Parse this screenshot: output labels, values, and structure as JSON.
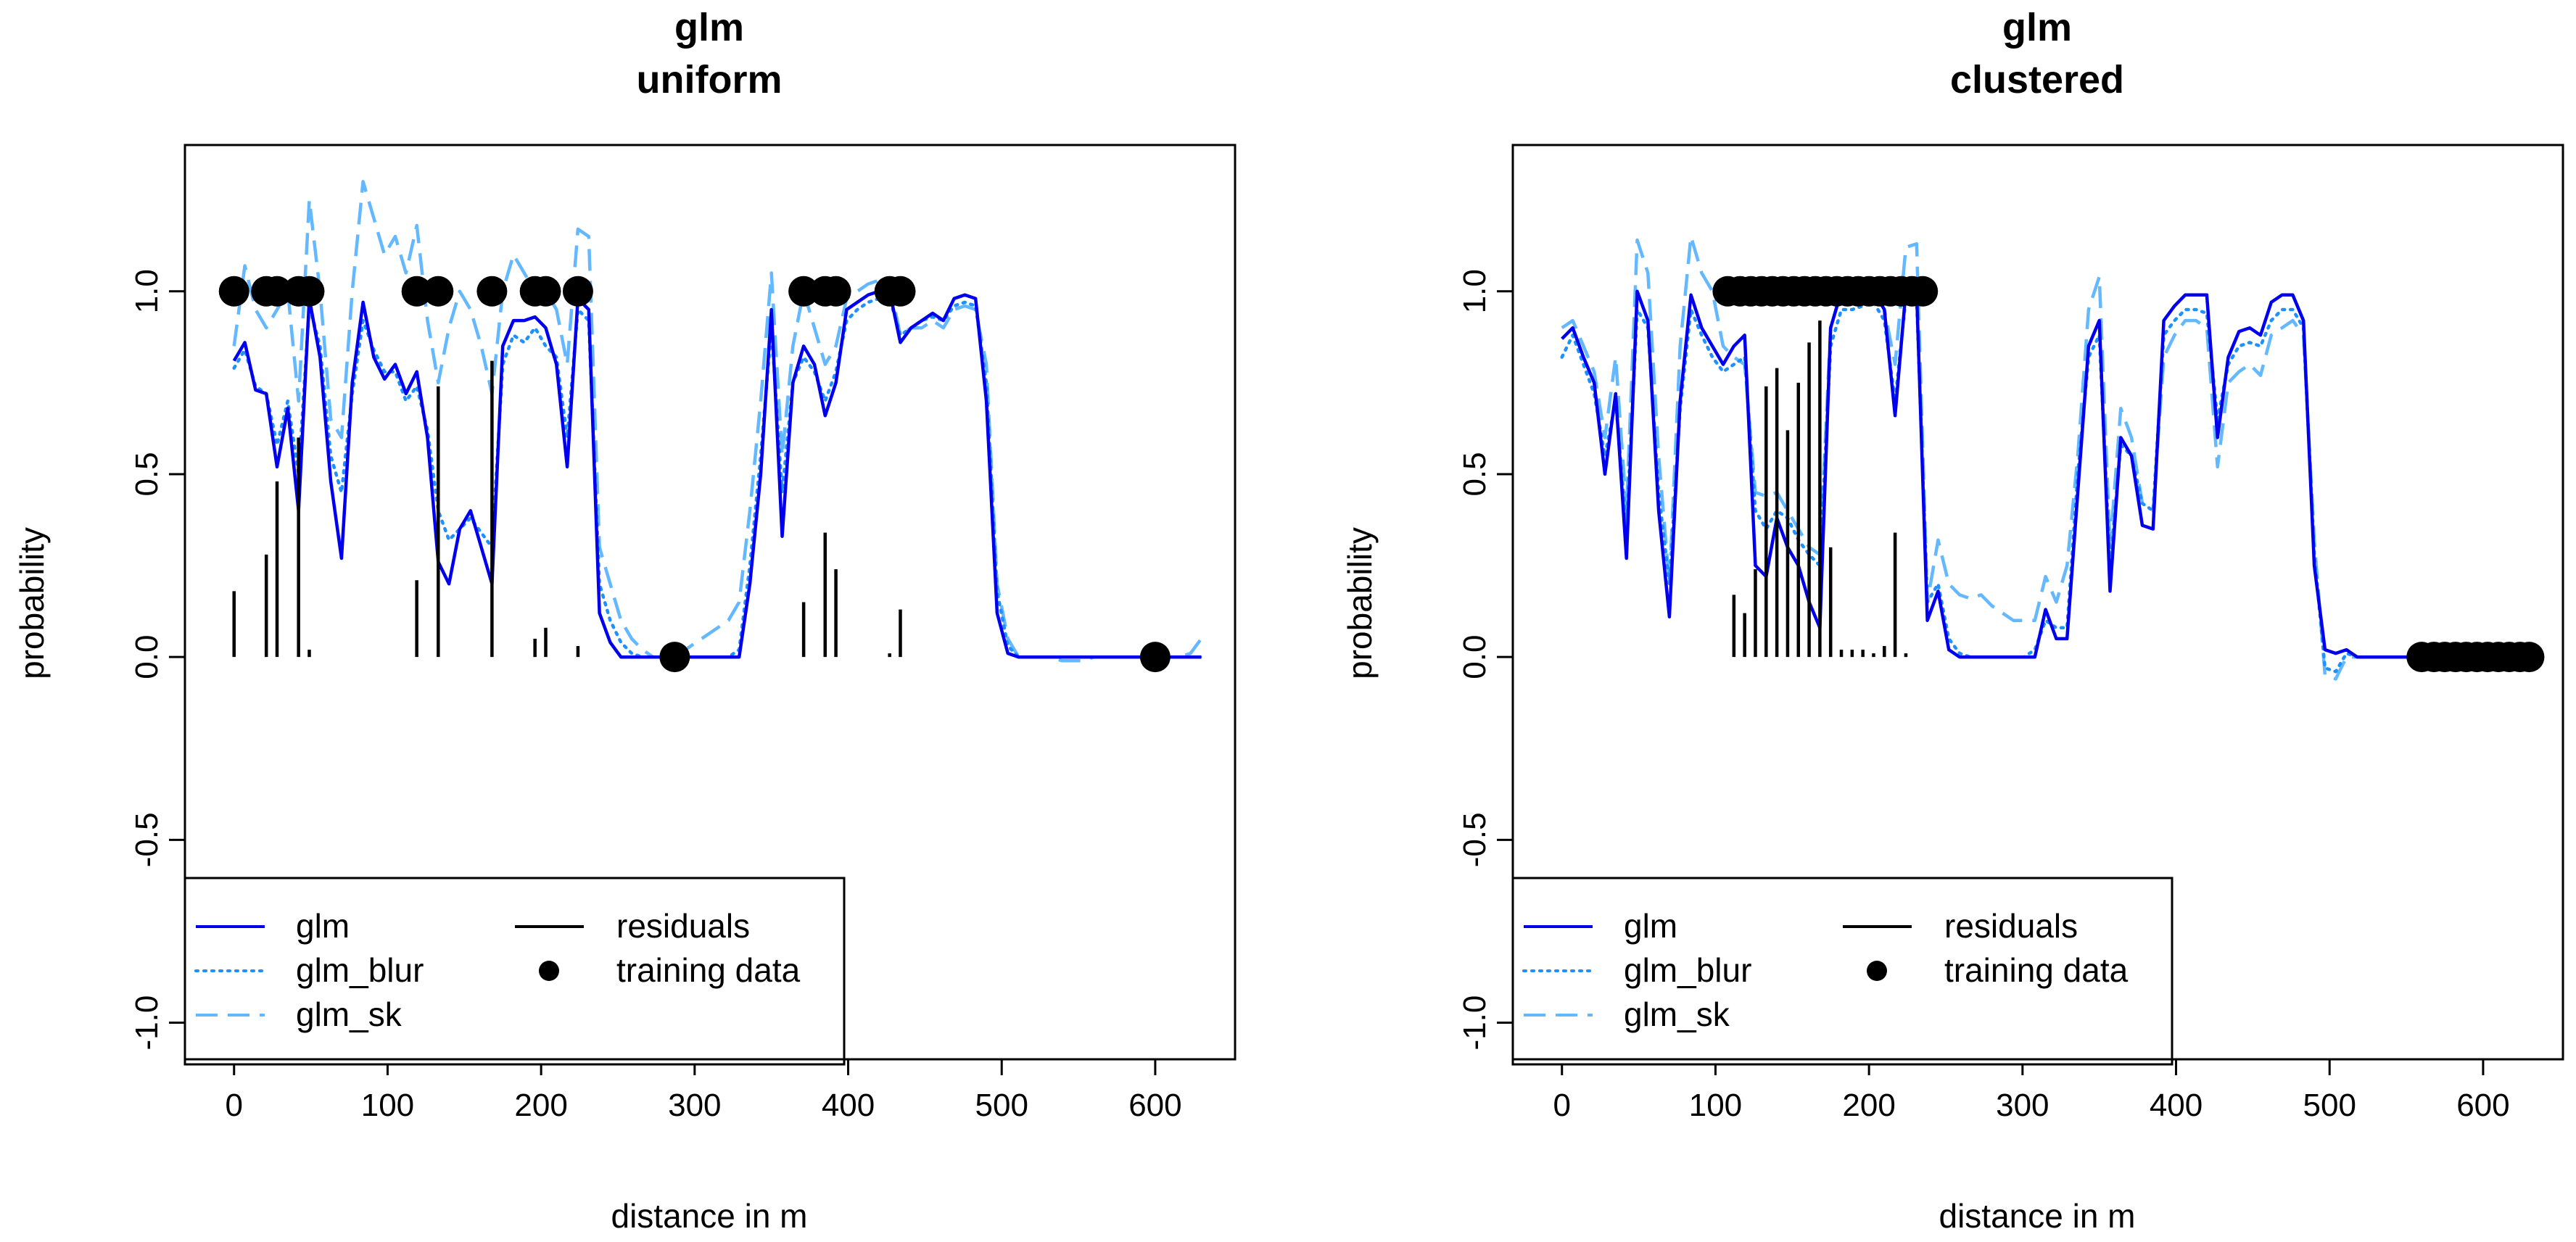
{
  "figure": {
    "ylabel": "probability",
    "xlabel": "distance in m",
    "legend": {
      "position": "bottom-left",
      "entries": [
        {
          "label": "glm",
          "style": "solid",
          "color": "#0000EE"
        },
        {
          "label": "glm_blur",
          "style": "dotted",
          "color": "#1E90FF"
        },
        {
          "label": "glm_sk",
          "style": "dashed",
          "color": "#63B8FF"
        },
        {
          "label": "residuals",
          "style": "solid",
          "color": "#000000"
        },
        {
          "label": "training data",
          "style": "point",
          "color": "#000000"
        }
      ]
    },
    "colors": {
      "glm": "#0000EE",
      "glm_blur": "#1E90FF",
      "glm_sk": "#63B8FF",
      "residuals": "#000000",
      "training": "#000000"
    }
  },
  "chart_data": [
    {
      "type": "line",
      "title_line1": "glm",
      "title_line2": "uniform",
      "xlabel": "distance in m",
      "ylabel": "probability",
      "xlim": [
        -32,
        652
      ],
      "ylim": [
        -1.1,
        1.4
      ],
      "xticks": [
        0,
        100,
        200,
        300,
        400,
        500,
        600
      ],
      "yticks": [
        -1.0,
        -0.5,
        0.0,
        0.5,
        1.0
      ],
      "ytick_labels": [
        "-1.0",
        "-0.5",
        "0.0",
        "0.5",
        "1.0"
      ],
      "x": [
        0,
        7,
        14,
        21,
        28,
        35,
        42,
        49,
        56,
        63,
        70,
        77,
        84,
        91,
        98,
        105,
        112,
        119,
        126,
        133,
        140,
        147,
        154,
        161,
        168,
        175,
        182,
        189,
        196,
        203,
        210,
        217,
        224,
        231,
        238,
        245,
        252,
        259,
        266,
        273,
        280,
        287,
        294,
        301,
        308,
        315,
        322,
        329,
        336,
        343,
        350,
        357,
        364,
        371,
        378,
        385,
        392,
        399,
        406,
        413,
        420,
        427,
        434,
        441,
        448,
        455,
        462,
        469,
        476,
        483,
        490,
        497,
        504,
        511,
        518,
        525,
        532,
        539,
        546,
        553,
        560,
        567,
        574,
        581,
        588,
        595,
        602,
        609,
        616,
        623,
        630
      ],
      "series": [
        {
          "name": "glm",
          "values": [
            0.81,
            0.86,
            0.73,
            0.72,
            0.52,
            0.68,
            0.4,
            0.98,
            0.82,
            0.48,
            0.27,
            0.75,
            0.97,
            0.82,
            0.76,
            0.8,
            0.72,
            0.78,
            0.6,
            0.26,
            0.2,
            0.35,
            0.4,
            0.3,
            0.2,
            0.85,
            0.92,
            0.92,
            0.93,
            0.9,
            0.8,
            0.52,
            0.98,
            0.95,
            0.12,
            0.04,
            0.0,
            0.0,
            0.0,
            0.0,
            0.0,
            0.0,
            0.0,
            0.0,
            0.0,
            0.0,
            0.0,
            0.0,
            0.2,
            0.5,
            0.95,
            0.33,
            0.75,
            0.85,
            0.8,
            0.66,
            0.75,
            0.95,
            0.97,
            0.99,
            1.0,
            1.0,
            0.86,
            0.9,
            0.92,
            0.94,
            0.92,
            0.98,
            0.99,
            0.98,
            0.7,
            0.12,
            0.01,
            0.0,
            0.0,
            0.0,
            0.0,
            0.0,
            0.0,
            0.0,
            0.0,
            0.0,
            0.0,
            0.0,
            0.0,
            0.0,
            0.0,
            0.0,
            0.0,
            0.0,
            0.0
          ]
        },
        {
          "name": "glm_blur",
          "values": [
            0.79,
            0.84,
            0.74,
            0.72,
            0.58,
            0.7,
            0.5,
            0.96,
            0.85,
            0.55,
            0.45,
            0.72,
            0.92,
            0.84,
            0.78,
            0.78,
            0.7,
            0.74,
            0.62,
            0.4,
            0.32,
            0.35,
            0.38,
            0.34,
            0.3,
            0.8,
            0.88,
            0.86,
            0.9,
            0.85,
            0.82,
            0.6,
            0.95,
            0.92,
            0.2,
            0.1,
            0.04,
            0.01,
            0.0,
            0.0,
            0.0,
            0.0,
            0.0,
            0.0,
            0.0,
            0.0,
            0.0,
            0.02,
            0.25,
            0.55,
            0.9,
            0.45,
            0.75,
            0.82,
            0.78,
            0.7,
            0.78,
            0.92,
            0.95,
            0.97,
            0.98,
            0.98,
            0.88,
            0.9,
            0.92,
            0.93,
            0.92,
            0.96,
            0.97,
            0.96,
            0.75,
            0.18,
            0.03,
            0.0,
            0.0,
            0.0,
            0.0,
            0.0,
            0.0,
            0.0,
            0.0,
            0.0,
            0.0,
            0.0,
            0.0,
            0.0,
            0.0,
            0.0,
            0.0,
            0.0,
            0.0
          ]
        },
        {
          "name": "glm_sk",
          "values": [
            0.85,
            1.07,
            0.95,
            0.9,
            0.95,
            1.0,
            0.7,
            1.25,
            1.0,
            0.65,
            0.6,
            1.0,
            1.3,
            1.2,
            1.1,
            1.15,
            1.05,
            1.18,
            0.92,
            0.75,
            0.9,
            1.0,
            0.95,
            0.85,
            0.72,
            1.0,
            1.1,
            1.05,
            1.0,
            1.0,
            0.95,
            0.8,
            1.17,
            1.15,
            0.3,
            0.2,
            0.1,
            0.05,
            0.02,
            0.0,
            0.0,
            0.0,
            0.02,
            0.04,
            0.06,
            0.08,
            0.1,
            0.15,
            0.4,
            0.7,
            1.05,
            0.55,
            0.85,
            1.0,
            0.9,
            0.8,
            0.85,
            0.98,
            1.0,
            1.02,
            1.03,
            1.02,
            0.88,
            0.9,
            0.9,
            0.92,
            0.9,
            0.95,
            0.96,
            0.95,
            0.8,
            0.2,
            0.05,
            0.0,
            0.0,
            0.0,
            0.0,
            -0.01,
            -0.01,
            -0.01,
            0.0,
            0.0,
            0.0,
            0.0,
            0.0,
            0.0,
            0.0,
            0.0,
            0.0,
            0.01,
            0.05
          ]
        }
      ],
      "residuals": {
        "x": [
          0,
          21,
          28,
          42,
          49,
          119,
          133,
          168,
          196,
          203,
          224,
          371,
          385,
          392,
          427,
          434
        ],
        "values": [
          0.18,
          0.28,
          0.48,
          0.6,
          0.02,
          0.21,
          0.74,
          0.81,
          0.05,
          0.08,
          0.03,
          0.15,
          0.34,
          0.24,
          0.01,
          0.13
        ]
      },
      "training_data": {
        "x": [
          0,
          21,
          28,
          42,
          49,
          119,
          133,
          168,
          196,
          203,
          224,
          371,
          385,
          392,
          427,
          434,
          287,
          600
        ],
        "values": [
          1,
          1,
          1,
          1,
          1,
          1,
          1,
          1,
          1,
          1,
          1,
          1,
          1,
          1,
          1,
          1,
          0,
          0
        ]
      }
    },
    {
      "type": "line",
      "title_line1": "glm",
      "title_line2": "clustered",
      "xlabel": "distance in m",
      "ylabel": "probability",
      "xlim": [
        -32,
        652
      ],
      "ylim": [
        -1.1,
        1.4
      ],
      "xticks": [
        0,
        100,
        200,
        300,
        400,
        500,
        600
      ],
      "yticks": [
        -1.0,
        -0.5,
        0.0,
        0.5,
        1.0
      ],
      "ytick_labels": [
        "-1.0",
        "-0.5",
        "0.0",
        "0.5",
        "1.0"
      ],
      "x": [
        0,
        7,
        14,
        21,
        28,
        35,
        42,
        49,
        56,
        63,
        70,
        77,
        84,
        91,
        98,
        105,
        112,
        119,
        126,
        133,
        140,
        147,
        154,
        161,
        168,
        175,
        182,
        189,
        196,
        203,
        210,
        217,
        224,
        231,
        238,
        245,
        252,
        259,
        266,
        273,
        280,
        287,
        294,
        301,
        308,
        315,
        322,
        329,
        336,
        343,
        350,
        357,
        364,
        371,
        378,
        385,
        392,
        399,
        406,
        413,
        420,
        427,
        434,
        441,
        448,
        455,
        462,
        469,
        476,
        483,
        490,
        497,
        504,
        511,
        518,
        525,
        532,
        539,
        546,
        553,
        560,
        567,
        574,
        581,
        588,
        595,
        602,
        609,
        616,
        623,
        630
      ],
      "series": [
        {
          "name": "glm",
          "values": [
            0.87,
            0.9,
            0.82,
            0.75,
            0.5,
            0.72,
            0.27,
            1.0,
            0.92,
            0.4,
            0.11,
            0.7,
            0.99,
            0.9,
            0.85,
            0.8,
            0.85,
            0.88,
            0.25,
            0.22,
            0.38,
            0.3,
            0.25,
            0.15,
            0.08,
            0.9,
            1.0,
            0.98,
            0.99,
            1.0,
            0.95,
            0.66,
            1.0,
            1.0,
            0.1,
            0.18,
            0.02,
            0.0,
            0.0,
            0.0,
            0.0,
            0.0,
            0.0,
            0.0,
            0.0,
            0.13,
            0.05,
            0.05,
            0.45,
            0.85,
            0.92,
            0.18,
            0.6,
            0.55,
            0.36,
            0.35,
            0.92,
            0.96,
            0.99,
            0.99,
            0.99,
            0.6,
            0.82,
            0.89,
            0.9,
            0.88,
            0.97,
            0.99,
            0.99,
            0.92,
            0.25,
            0.02,
            0.01,
            0.02,
            0.0,
            0.0,
            0.0,
            0.0,
            0.0,
            0.0,
            0.0,
            0.0,
            0.0,
            0.0,
            0.0,
            0.0,
            0.0,
            0.0,
            0.0,
            0.0,
            0.0
          ]
        },
        {
          "name": "glm_blur",
          "values": [
            0.82,
            0.88,
            0.8,
            0.72,
            0.55,
            0.7,
            0.35,
            0.95,
            0.9,
            0.45,
            0.2,
            0.68,
            0.95,
            0.88,
            0.82,
            0.78,
            0.8,
            0.82,
            0.4,
            0.35,
            0.4,
            0.38,
            0.32,
            0.28,
            0.25,
            0.85,
            0.95,
            0.95,
            0.96,
            0.97,
            0.92,
            0.7,
            0.98,
            0.98,
            0.15,
            0.2,
            0.05,
            0.01,
            0.0,
            0.0,
            0.0,
            0.0,
            0.0,
            0.0,
            0.02,
            0.1,
            0.08,
            0.08,
            0.5,
            0.82,
            0.88,
            0.25,
            0.58,
            0.55,
            0.42,
            0.4,
            0.88,
            0.92,
            0.95,
            0.95,
            0.94,
            0.65,
            0.8,
            0.85,
            0.86,
            0.85,
            0.92,
            0.95,
            0.95,
            0.9,
            0.28,
            -0.03,
            -0.04,
            0.01,
            0.0,
            0.0,
            0.0,
            0.0,
            0.0,
            0.0,
            0.0,
            0.0,
            0.0,
            0.0,
            0.0,
            0.0,
            0.0,
            0.0,
            0.0,
            0.0,
            0.0
          ]
        },
        {
          "name": "glm_sk",
          "values": [
            0.9,
            0.92,
            0.85,
            0.78,
            0.6,
            0.82,
            0.4,
            1.14,
            1.05,
            0.55,
            0.2,
            0.85,
            1.15,
            1.05,
            1.0,
            0.85,
            0.82,
            0.8,
            0.45,
            0.44,
            0.45,
            0.4,
            0.35,
            0.3,
            0.28,
            0.9,
            1.0,
            1.0,
            1.0,
            1.0,
            0.95,
            0.8,
            1.12,
            1.13,
            0.15,
            0.32,
            0.2,
            0.17,
            0.16,
            0.17,
            0.14,
            0.12,
            0.1,
            0.1,
            0.1,
            0.22,
            0.15,
            0.25,
            0.55,
            0.95,
            1.04,
            0.3,
            0.68,
            0.6,
            0.42,
            0.4,
            0.82,
            0.88,
            0.92,
            0.92,
            0.9,
            0.52,
            0.75,
            0.78,
            0.8,
            0.77,
            0.88,
            0.9,
            0.92,
            0.88,
            0.32,
            -0.05,
            -0.06,
            0.0,
            0.0,
            0.0,
            0.0,
            0.0,
            0.0,
            0.0,
            0.0,
            0.0,
            0.0,
            0.0,
            0.0,
            0.0,
            0.0,
            0.0,
            0.0,
            0.0,
            0.0
          ]
        }
      ],
      "residuals": {
        "x": [
          112,
          119,
          126,
          133,
          140,
          147,
          154,
          161,
          168,
          175,
          182,
          189,
          196,
          203,
          210,
          217,
          224
        ],
        "values": [
          0.17,
          0.12,
          0.24,
          0.74,
          0.79,
          0.62,
          0.75,
          0.86,
          0.92,
          0.3,
          0.02,
          0.02,
          0.02,
          0.01,
          0.03,
          0.34,
          0.01
        ]
      },
      "training_data": {
        "x": [
          108,
          116,
          123,
          130,
          137,
          144,
          151,
          158,
          165,
          172,
          179,
          186,
          193,
          200,
          207,
          214,
          221,
          228,
          235,
          560,
          568,
          575,
          582,
          589,
          596,
          603,
          610,
          617,
          624,
          630
        ],
        "values": [
          1,
          1,
          1,
          1,
          1,
          1,
          1,
          1,
          1,
          1,
          1,
          1,
          1,
          1,
          1,
          1,
          1,
          1,
          1,
          0,
          0,
          0,
          0,
          0,
          0,
          0,
          0,
          0,
          0,
          0
        ]
      }
    }
  ]
}
